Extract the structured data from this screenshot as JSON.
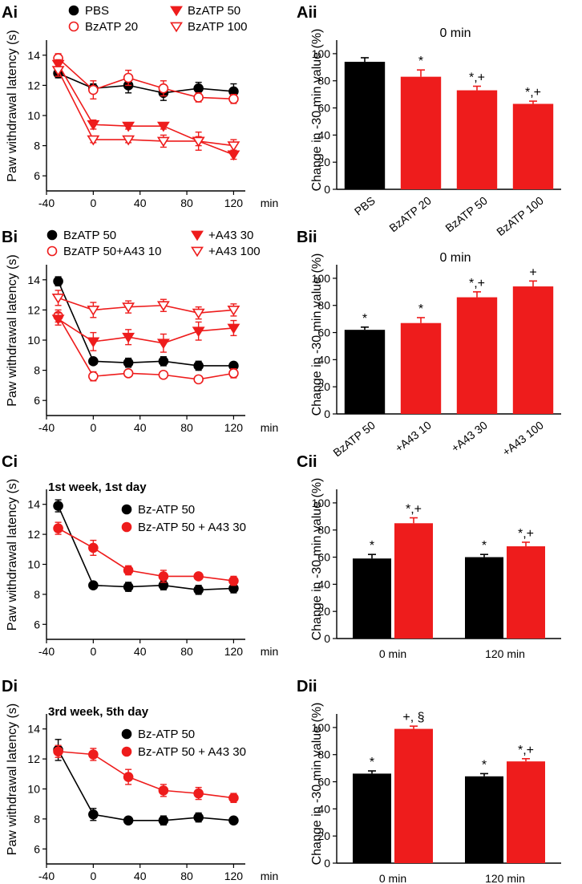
{
  "colors": {
    "black": "#000000",
    "red": "#ee1c1c"
  },
  "figure": {
    "time_unit": "min",
    "ylabel_line": "Paw withdrawal latency (s)",
    "ylabel_bar": "Change in -30 min value (%)"
  },
  "chart_data": [
    {
      "id": "Ai",
      "type": "line",
      "panel_label": "Ai",
      "subtitle": "",
      "xlabel": "min",
      "ylabel": "Paw withdrawal latency (s)",
      "x": [
        -30,
        0,
        30,
        60,
        90,
        120
      ],
      "xticks": [
        -40,
        0,
        40,
        80,
        120
      ],
      "yticks": [
        6,
        8,
        10,
        12,
        14
      ],
      "xlim": [
        -40,
        130
      ],
      "ylim": [
        5,
        15
      ],
      "series": [
        {
          "name": "PBS",
          "color": "#000000",
          "marker": "circle",
          "fill": true,
          "values": [
            12.8,
            11.8,
            12.0,
            11.5,
            11.8,
            11.6
          ],
          "err": [
            0.3,
            0.3,
            0.5,
            0.5,
            0.4,
            0.5
          ]
        },
        {
          "name": "BzATP 20",
          "color": "#ee1c1c",
          "marker": "circle",
          "fill": false,
          "values": [
            13.8,
            11.7,
            12.5,
            11.8,
            11.2,
            11.1
          ],
          "err": [
            0.3,
            0.6,
            0.5,
            0.5,
            0.3,
            0.3
          ]
        },
        {
          "name": "BzATP 50",
          "color": "#ee1c1c",
          "marker": "tri-down",
          "fill": true,
          "values": [
            13.4,
            9.4,
            9.3,
            9.3,
            8.3,
            7.4
          ],
          "err": [
            0.3,
            0.3,
            0.2,
            0.2,
            0.3,
            0.3
          ]
        },
        {
          "name": "BzATP 100",
          "color": "#ee1c1c",
          "marker": "tri-down",
          "fill": false,
          "values": [
            13.0,
            8.4,
            8.4,
            8.3,
            8.3,
            8.0
          ],
          "err": [
            0.4,
            0.2,
            0.2,
            0.4,
            0.6,
            0.4
          ]
        }
      ]
    },
    {
      "id": "Aii",
      "type": "bar",
      "panel_label": "Aii",
      "title": "0 min",
      "ylabel": "Change in -30 min value (%)",
      "yticks": [
        0,
        20,
        40,
        60,
        80,
        100
      ],
      "ylim": [
        0,
        110
      ],
      "categories": [
        "PBS",
        "BzATP 20",
        "BzATP 50",
        "BzATP 100"
      ],
      "values": [
        94,
        83,
        73,
        63
      ],
      "err": [
        3,
        5,
        3,
        2
      ],
      "bar_colors": [
        "#000000",
        "#ee1c1c",
        "#ee1c1c",
        "#ee1c1c"
      ],
      "annotations": [
        "",
        "*",
        "*,+",
        "*,+"
      ]
    },
    {
      "id": "Bi",
      "type": "line",
      "panel_label": "Bi",
      "subtitle": "",
      "xlabel": "min",
      "ylabel": "Paw withdrawal latency (s)",
      "x": [
        -30,
        0,
        30,
        60,
        90,
        120
      ],
      "xticks": [
        -40,
        0,
        40,
        80,
        120
      ],
      "yticks": [
        6,
        8,
        10,
        12,
        14
      ],
      "xlim": [
        -40,
        130
      ],
      "ylim": [
        5,
        15
      ],
      "series": [
        {
          "name": "BzATP 50",
          "color": "#000000",
          "marker": "circle",
          "fill": true,
          "values": [
            13.9,
            8.6,
            8.5,
            8.6,
            8.3,
            8.3
          ],
          "err": [
            0.3,
            0.2,
            0.3,
            0.3,
            0.3,
            0.2
          ]
        },
        {
          "name": "BzATP 50+A43 10",
          "color": "#ee1c1c",
          "marker": "circle",
          "fill": false,
          "values": [
            11.6,
            7.6,
            7.8,
            7.7,
            7.4,
            7.8
          ],
          "err": [
            0.4,
            0.3,
            0.2,
            0.2,
            0.2,
            0.3
          ]
        },
        {
          "name": "+A43 30",
          "color": "#ee1c1c",
          "marker": "tri-down",
          "fill": true,
          "values": [
            11.4,
            9.9,
            10.2,
            9.8,
            10.6,
            10.8
          ],
          "err": [
            0.4,
            0.6,
            0.5,
            0.6,
            0.6,
            0.5
          ]
        },
        {
          "name": "+A43 100",
          "color": "#ee1c1c",
          "marker": "tri-down",
          "fill": false,
          "values": [
            12.8,
            12.0,
            12.2,
            12.3,
            11.8,
            12.0
          ],
          "err": [
            0.5,
            0.5,
            0.4,
            0.4,
            0.4,
            0.4
          ]
        }
      ]
    },
    {
      "id": "Bii",
      "type": "bar",
      "panel_label": "Bii",
      "title": "0 min",
      "ylabel": "Change in -30 min value (%)",
      "yticks": [
        0,
        20,
        40,
        60,
        80,
        100
      ],
      "ylim": [
        0,
        110
      ],
      "categories": [
        "BzATP 50",
        "+A43 10",
        "+A43 30",
        "+A43 100"
      ],
      "values": [
        62,
        67,
        86,
        94
      ],
      "err": [
        2,
        4,
        4,
        4
      ],
      "bar_colors": [
        "#000000",
        "#ee1c1c",
        "#ee1c1c",
        "#ee1c1c"
      ],
      "annotations": [
        "*",
        "*",
        "*,+",
        "+"
      ]
    },
    {
      "id": "Ci",
      "type": "line",
      "panel_label": "Ci",
      "subtitle": "1st week, 1st day",
      "xlabel": "min",
      "ylabel": "Paw withdrawal latency (s)",
      "x": [
        -30,
        0,
        30,
        60,
        90,
        120
      ],
      "xticks": [
        -40,
        0,
        40,
        80,
        120
      ],
      "yticks": [
        6,
        8,
        10,
        12,
        14
      ],
      "xlim": [
        -40,
        130
      ],
      "ylim": [
        5,
        15
      ],
      "series": [
        {
          "name": "Bz-ATP 50",
          "color": "#000000",
          "marker": "circle",
          "fill": true,
          "values": [
            13.9,
            8.6,
            8.5,
            8.6,
            8.3,
            8.4
          ],
          "err": [
            0.4,
            0.2,
            0.3,
            0.3,
            0.3,
            0.3
          ]
        },
        {
          "name": "Bz-ATP 50 + A43 30",
          "color": "#ee1c1c",
          "marker": "circle",
          "fill": true,
          "values": [
            12.4,
            11.1,
            9.6,
            9.2,
            9.2,
            8.9
          ],
          "err": [
            0.4,
            0.5,
            0.3,
            0.4,
            0.2,
            0.3
          ]
        }
      ]
    },
    {
      "id": "Cii",
      "type": "bar",
      "panel_label": "Cii",
      "title": "",
      "ylabel": "Change in -30 min value (%)",
      "yticks": [
        0,
        20,
        40,
        60,
        80,
        100
      ],
      "ylim": [
        0,
        110
      ],
      "categories": [
        "0 min",
        "120 min"
      ],
      "series": [
        {
          "name": "Bz-ATP 50",
          "color": "#000000",
          "values": [
            59,
            60
          ],
          "err": [
            3,
            2
          ],
          "annotations": [
            "*",
            "*"
          ]
        },
        {
          "name": "Bz-ATP 50 + A43 30",
          "color": "#ee1c1c",
          "values": [
            85,
            68
          ],
          "err": [
            4,
            3
          ],
          "annotations": [
            "*,+",
            "*,+"
          ]
        }
      ]
    },
    {
      "id": "Di",
      "type": "line",
      "panel_label": "Di",
      "subtitle": "3rd week, 5th day",
      "xlabel": "min",
      "ylabel": "Paw withdrawal latency (s)",
      "x": [
        -30,
        0,
        30,
        60,
        90,
        120
      ],
      "xticks": [
        -40,
        0,
        40,
        80,
        120
      ],
      "yticks": [
        6,
        8,
        10,
        12,
        14
      ],
      "xlim": [
        -40,
        130
      ],
      "ylim": [
        5,
        15
      ],
      "series": [
        {
          "name": "Bz-ATP 50",
          "color": "#000000",
          "marker": "circle",
          "fill": true,
          "values": [
            12.6,
            8.3,
            7.9,
            7.9,
            8.1,
            7.9
          ],
          "err": [
            0.7,
            0.4,
            0.2,
            0.3,
            0.3,
            0.2
          ]
        },
        {
          "name": "Bz-ATP 50 + A43 30",
          "color": "#ee1c1c",
          "marker": "circle",
          "fill": true,
          "values": [
            12.5,
            12.3,
            10.8,
            9.9,
            9.7,
            9.4
          ],
          "err": [
            0.4,
            0.4,
            0.5,
            0.4,
            0.4,
            0.3
          ]
        }
      ]
    },
    {
      "id": "Dii",
      "type": "bar",
      "panel_label": "Dii",
      "title": "",
      "ylabel": "Change in -30 min value (%)",
      "yticks": [
        0,
        20,
        40,
        60,
        80,
        100
      ],
      "ylim": [
        0,
        110
      ],
      "categories": [
        "0 min",
        "120 min"
      ],
      "series": [
        {
          "name": "Bz-ATP 50",
          "color": "#000000",
          "values": [
            66,
            64
          ],
          "err": [
            2,
            2
          ],
          "annotations": [
            "*",
            "*"
          ]
        },
        {
          "name": "Bz-ATP 50 + A43 30",
          "color": "#ee1c1c",
          "values": [
            99,
            75
          ],
          "err": [
            2,
            2
          ],
          "annotations": [
            "+, §",
            "*,+"
          ]
        }
      ]
    }
  ]
}
